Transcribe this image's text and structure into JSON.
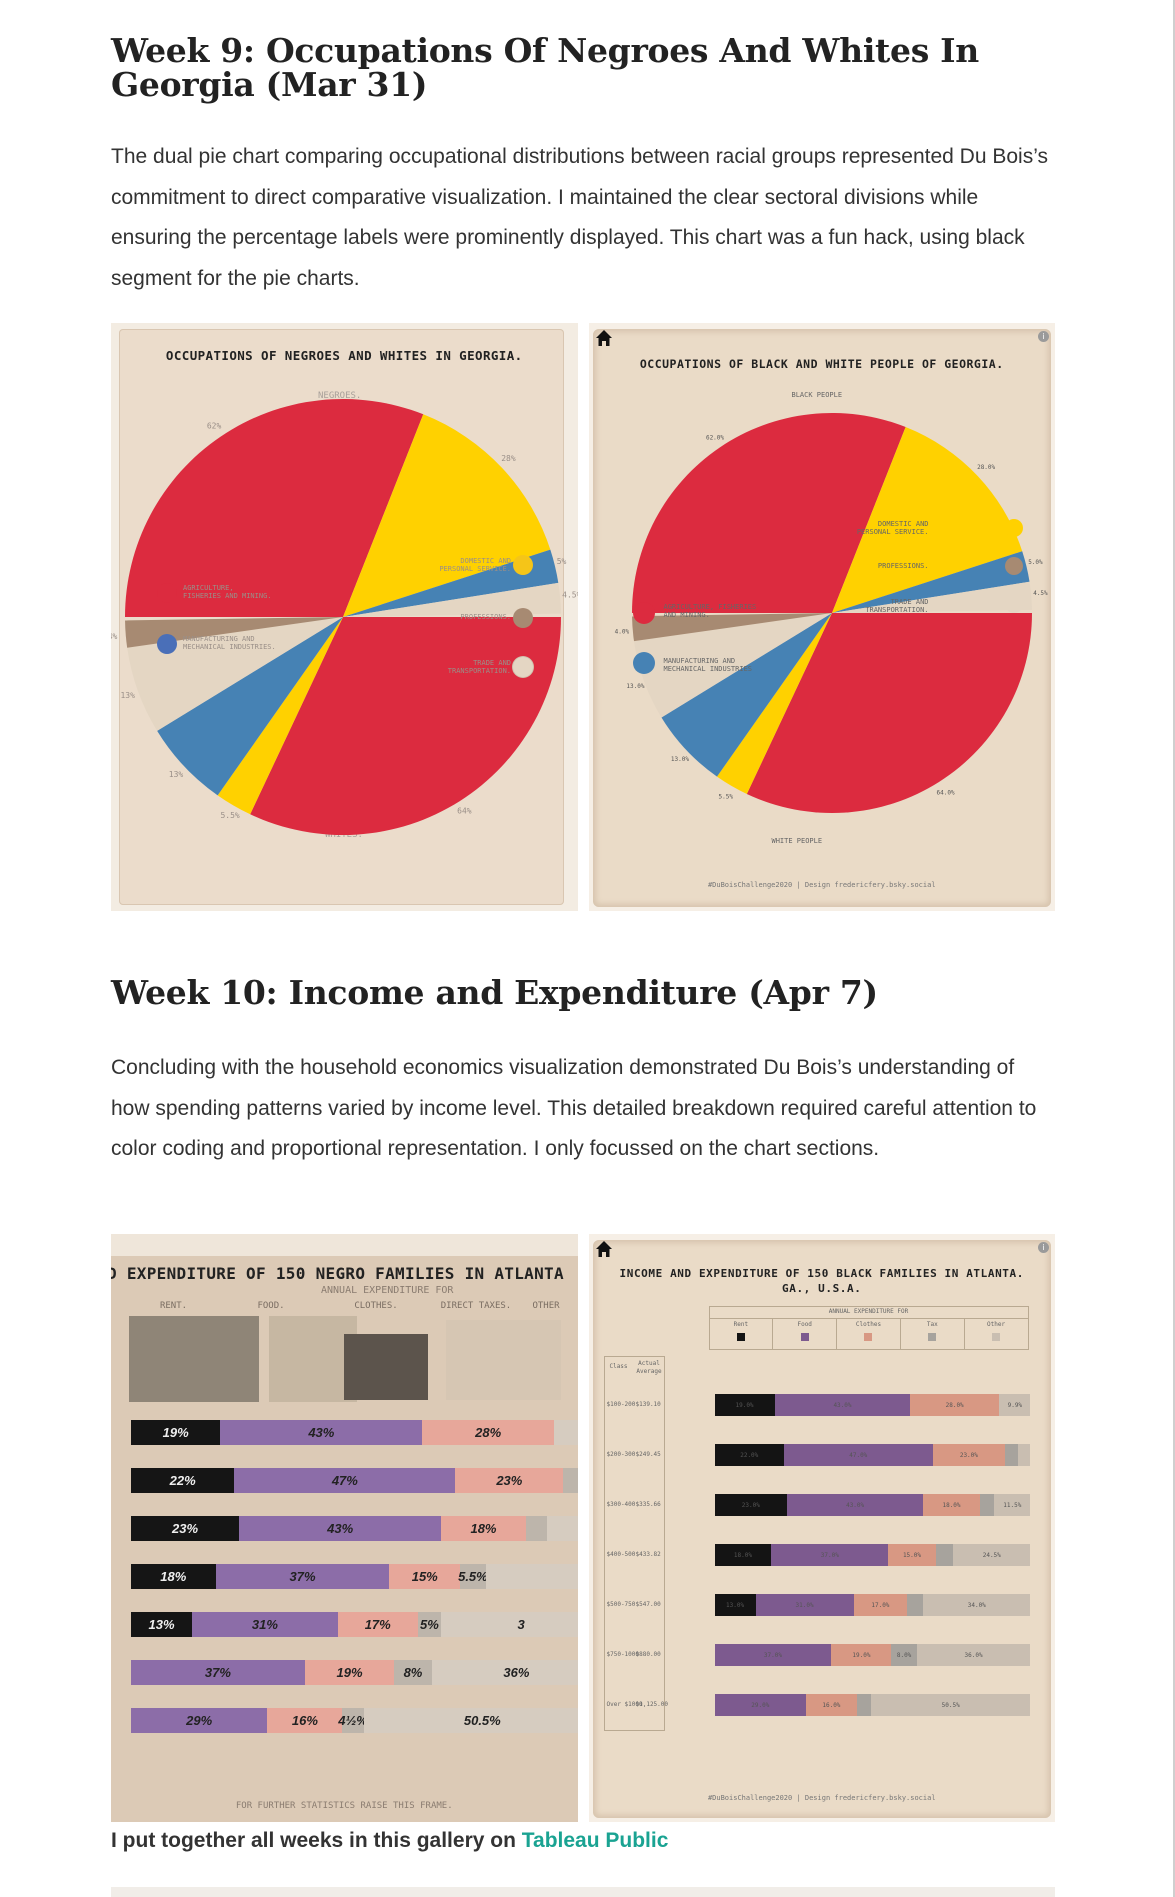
{
  "week9": {
    "heading": "Week 9: Occupations Of Negroes And Whites In Georgia (Mar 31)",
    "paragraph": "The dual pie chart comparing occupational distributions between racial groups represented Du Bois’s commitment to direct comparative visualization. I maintained the clear sectoral divisions while ensuring the percentage labels were prominently displayed. This chart was a fun hack, using black segment for the pie charts.",
    "original": {
      "title": "OCCUPATIONS OF NEGROES AND WHITES IN GEORGIA.",
      "top_label": "NEGROES.",
      "bottom_label": "WHITES.",
      "top_pcts": [
        "62%",
        "28%",
        "5%",
        "4.5%"
      ],
      "bottom_pcts": [
        "64%",
        "5.5%",
        "13%",
        "13%",
        "4%"
      ],
      "legend": [
        "AGRICULTURE, FISHERIES AND MINING.",
        "MANUFACTURING AND MECHANICAL INDUSTRIES.",
        "DOMESTIC AND PERSONAL SERVICE.",
        "PROFESSIONS.",
        "TRADE AND TRANSPORTATION."
      ]
    },
    "recreation": {
      "title": "OCCUPATIONS OF BLACK AND WHITE PEOPLE OF GEORGIA.",
      "top_label": "BLACK PEOPLE",
      "bottom_label": "WHITE PEOPLE",
      "top_pcts": [
        "62.0%",
        "28.0%",
        "5.0%",
        "4.5%"
      ],
      "bottom_pcts": [
        "64.0%",
        "5.5%",
        "13.0%",
        "13.0%",
        "4.0%"
      ],
      "legend": [
        "AGRICULTURE, FISHERIES AND MINING.",
        "MANUFACTURING AND MECHANICAL INDUSTRIES",
        "DOMESTIC AND PERSONAL SERVICE.",
        "PROFESSIONS.",
        "TRADE AND TRANSPORTATION."
      ],
      "credit": "#DuBoisChallenge2020 | Design fredericfery.bsky.social"
    }
  },
  "week10": {
    "heading": "Week 10: Income and Expenditure (Apr 7)",
    "paragraph": "Concluding with the household economics visualization demonstrated Du Bois’s understanding of how spending patterns varied by income level. This detailed breakdown required careful attention to color coding and proportional representation. I only focussed on the chart sections.",
    "original": {
      "title": "D EXPENDITURE OF 150 NEGRO FAMILIES IN ATLANTA",
      "subtitle": "ANNUAL EXPENDITURE FOR",
      "columns": [
        "RENT.",
        "FOOD.",
        "CLOTHES.",
        "DIRECT TAXES.",
        "OTHER"
      ],
      "footer": "FOR FURTHER STATISTICS RAISE THIS FRAME."
    },
    "recreation": {
      "title": "INCOME AND EXPENDITURE OF 150 BLACK FAMILIES IN ATLANTA. GA., U.S.A.",
      "legend_header": "ANNUAL EXPENDITURE FOR",
      "legend": [
        "Rent",
        "Food",
        "Clothes",
        "Tax",
        "Other"
      ],
      "table_headers": [
        "Class",
        "Actual Average"
      ],
      "credit": "#DuBoisChallenge2020 | Design fredericfery.bsky.social"
    }
  },
  "colors": {
    "red": "#dc2b3f",
    "gold": "#ffd100",
    "blue": "#4682b4",
    "tan": "#a78a72",
    "beige": "#e4d6c3",
    "black": "#141414",
    "purple": "#7d5a8f",
    "salmon": "#d89883",
    "grey": "#a7a39d",
    "lightgrey": "#c9beb1",
    "link": "#1aa392"
  },
  "chart_data": [
    {
      "type": "pie",
      "title": "OCCUPATIONS OF BLACK AND WHITE PEOPLE OF GEORGIA.",
      "series": [
        {
          "name": "BLACK PEOPLE",
          "categories": [
            "AGRICULTURE, FISHERIES AND MINING.",
            "DOMESTIC AND PERSONAL SERVICE.",
            "MANUFACTURING AND MECHANICAL INDUSTRIES",
            "TRADE AND TRANSPORTATION."
          ],
          "values": [
            62.0,
            28.0,
            5.0,
            4.5
          ]
        },
        {
          "name": "WHITE PEOPLE",
          "categories": [
            "AGRICULTURE, FISHERIES AND MINING.",
            "DOMESTIC AND PERSONAL SERVICE.",
            "MANUFACTURING AND MECHANICAL INDUSTRIES",
            "TRADE AND TRANSPORTATION.",
            "PROFESSIONS."
          ],
          "values": [
            64.0,
            5.5,
            13.0,
            13.0,
            4.0
          ]
        }
      ]
    },
    {
      "type": "bar",
      "title": "INCOME AND EXPENDITURE OF 150 BLACK FAMILIES IN ATLANTA. GA., U.S.A.",
      "categories": [
        "$100-200",
        "$200-300",
        "$300-400",
        "$400-500",
        "$500-750",
        "$750-1000",
        "Over $1000"
      ],
      "averages": [
        "$139.10",
        "$249.45",
        "$335.66",
        "$433.82",
        "$547.00",
        "$880.00",
        "$1,125.00"
      ],
      "series": [
        {
          "name": "Rent",
          "values": [
            19.0,
            22.0,
            23.0,
            18.0,
            13.0,
            0,
            0
          ]
        },
        {
          "name": "Food",
          "values": [
            43.0,
            47.0,
            43.0,
            37.0,
            31.0,
            37.0,
            29.0
          ]
        },
        {
          "name": "Clothes",
          "values": [
            28.0,
            23.0,
            18.0,
            15.0,
            17.0,
            19.0,
            16.0
          ]
        },
        {
          "name": "Tax",
          "values": [
            0.1,
            4.0,
            4.5,
            5.5,
            5.0,
            8.0,
            4.5
          ]
        },
        {
          "name": "Other",
          "values": [
            9.9,
            4.0,
            11.5,
            24.5,
            34.0,
            36.0,
            50.5
          ]
        }
      ],
      "original_labels": [
        [
          "19%",
          "43%",
          "28%"
        ],
        [
          "22%",
          "47%",
          "23%"
        ],
        [
          "23%",
          "43%",
          "18%"
        ],
        [
          "18%",
          "37%",
          "15%",
          "5.5%"
        ],
        [
          "13%",
          "31%",
          "17%",
          "5%",
          "3"
        ],
        [
          "37%",
          "19%",
          "8%",
          "36%"
        ],
        [
          "29%",
          "16%",
          "4½%",
          "50.5%"
        ]
      ],
      "recreation_labels": [
        [
          "",
          "43.0%",
          "28.0%",
          "9.9%"
        ],
        [
          "22.0%",
          "47.0%",
          "23.0%",
          ""
        ],
        [
          "23.0%",
          "43.0%",
          "18.0%",
          "11.5%"
        ],
        [
          "18.0%",
          "37.0%",
          "15.0%",
          "5.5%",
          "24.5%"
        ],
        [
          "13.0%",
          "31.0%",
          "17.0%",
          "",
          "34.0%"
        ],
        [
          "37.0%",
          "19.0%",
          "8.0%",
          "36.0%"
        ],
        [
          "29.0%",
          "16.0%",
          "",
          "50.5%"
        ]
      ]
    }
  ],
  "gallery": {
    "text": "I put together all weeks in this gallery on ",
    "link": "Tableau Public"
  }
}
